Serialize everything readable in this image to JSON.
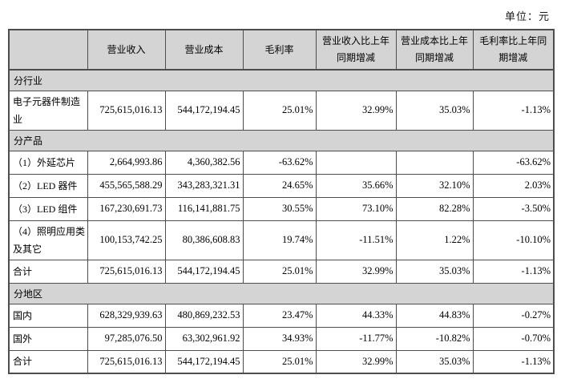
{
  "unit_label": "单位：元",
  "colors": {
    "header_bg": "#d4d4d4",
    "section_bg": "#d4d4d4",
    "border": "#4d4d4d",
    "text": "#000000"
  },
  "table": {
    "headers": [
      "",
      "营业收入",
      "营业成本",
      "毛利率",
      "营业收入比上年同期增减",
      "营业成本比上年同期增减",
      "毛利率比上年同期增减"
    ],
    "rows": [
      {
        "type": "section",
        "label": "分行业"
      },
      {
        "type": "data",
        "label": "电子元器件制造业",
        "cells": [
          "725,615,016.13",
          "544,172,194.45",
          "25.01%",
          "32.99%",
          "35.03%",
          "-1.13%"
        ]
      },
      {
        "type": "section",
        "label": "分产品"
      },
      {
        "type": "data",
        "label": "（1）外延芯片",
        "cells": [
          "2,664,993.86",
          "4,360,382.56",
          "-63.62%",
          "",
          "",
          "-63.62%"
        ]
      },
      {
        "type": "data",
        "label": "（2）LED 器件",
        "cells": [
          "455,565,588.29",
          "343,283,321.31",
          "24.65%",
          "35.66%",
          "32.10%",
          "2.03%"
        ]
      },
      {
        "type": "data",
        "label": "（3）LED 组件",
        "cells": [
          "167,230,691.73",
          "116,141,881.75",
          "30.55%",
          "73.10%",
          "82.28%",
          "-3.50%"
        ]
      },
      {
        "type": "data",
        "label": "（4）照明应用类及其它",
        "cells": [
          "100,153,742.25",
          "80,386,608.83",
          "19.74%",
          "-11.51%",
          "1.22%",
          "-10.10%"
        ]
      },
      {
        "type": "data",
        "label": "合计",
        "cells": [
          "725,615,016.13",
          "544,172,194.45",
          "25.01%",
          "32.99%",
          "35.03%",
          "-1.13%"
        ]
      },
      {
        "type": "section",
        "label": "分地区"
      },
      {
        "type": "data",
        "label": "国内",
        "cells": [
          "628,329,939.63",
          "480,869,232.53",
          "23.47%",
          "44.33%",
          "44.83%",
          "-0.27%"
        ]
      },
      {
        "type": "data",
        "label": "国外",
        "cells": [
          "97,285,076.50",
          "63,302,961.92",
          "34.93%",
          "-11.77%",
          "-10.82%",
          "-0.70%"
        ]
      },
      {
        "type": "data",
        "label": "合计",
        "cells": [
          "725,615,016.13",
          "544,172,194.45",
          "25.01%",
          "32.99%",
          "35.03%",
          "-1.13%"
        ]
      }
    ]
  }
}
